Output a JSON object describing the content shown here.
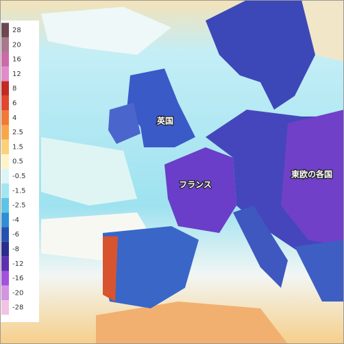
{
  "legend": {
    "items": [
      {
        "label": "28",
        "color": "#6b4a4f"
      },
      {
        "label": "20",
        "color": "#a8788c"
      },
      {
        "label": "16",
        "color": "#cc6aa8"
      },
      {
        "label": "12",
        "color": "#e08cc8"
      },
      {
        "label": "8",
        "color": "#c42a22"
      },
      {
        "label": "6",
        "color": "#e2472e"
      },
      {
        "label": "4",
        "color": "#f27a34"
      },
      {
        "label": "2.5",
        "color": "#f8a648"
      },
      {
        "label": "1.5",
        "color": "#fbd27a"
      },
      {
        "label": "0.5",
        "color": "#fff3c8"
      },
      {
        "label": "-0.5",
        "color": "#dcf6f6"
      },
      {
        "label": "-1.5",
        "color": "#a2e6f0"
      },
      {
        "label": "-2.5",
        "color": "#5ec4e6"
      },
      {
        "label": "-4",
        "color": "#2e8ed6"
      },
      {
        "label": "-6",
        "color": "#2452b2"
      },
      {
        "label": "-8",
        "color": "#2a2c8e"
      },
      {
        "label": "-12",
        "color": "#5e30b0"
      },
      {
        "label": "-16",
        "color": "#a252de"
      },
      {
        "label": "-20",
        "color": "#d494e2"
      },
      {
        "label": "-28",
        "color": "#f2c4e2"
      }
    ]
  },
  "map": {
    "labels": [
      "英国",
      "フランス",
      "東欧の各国"
    ]
  }
}
